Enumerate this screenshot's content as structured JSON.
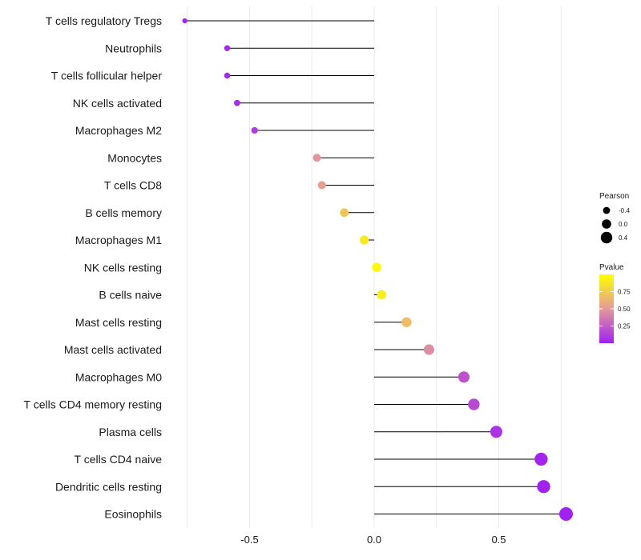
{
  "chart_data": {
    "type": "lollipop",
    "xlabel": "",
    "ylabel": "",
    "xlim": [
      -0.8,
      0.8
    ],
    "xticks": [
      -0.5,
      0.0,
      0.5
    ],
    "xtick_labels": [
      "-0.5",
      "0.0",
      "0.5"
    ],
    "grid": true,
    "categories": [
      "T cells regulatory  Tregs",
      "Neutrophils",
      "T cells follicular helper",
      "NK cells activated",
      "Macrophages M2",
      "Monocytes",
      "T cells CD8",
      "B cells memory",
      "Macrophages M1",
      "NK cells resting",
      "B cells naive",
      "Mast cells resting",
      "Mast cells activated",
      "Macrophages M0",
      "T cells CD4 memory resting",
      "Plasma cells",
      "T cells CD4 naive",
      "Dendritic cells resting",
      "Eosinophils"
    ],
    "pearson": [
      -0.76,
      -0.59,
      -0.59,
      -0.55,
      -0.48,
      -0.23,
      -0.21,
      -0.12,
      -0.04,
      0.01,
      0.03,
      0.13,
      0.22,
      0.36,
      0.4,
      0.49,
      0.67,
      0.68,
      0.77
    ],
    "pvalue": [
      0.02,
      0.04,
      0.04,
      0.05,
      0.12,
      0.48,
      0.53,
      0.72,
      0.9,
      0.97,
      0.92,
      0.68,
      0.45,
      0.21,
      0.17,
      0.08,
      0.02,
      0.01,
      0.005
    ],
    "legend": {
      "position": "right",
      "size": {
        "title": "Pearson",
        "entries": [
          {
            "label": "-0.4",
            "value": -0.4
          },
          {
            "label": "0.0",
            "value": 0.0
          },
          {
            "label": "0.4",
            "value": 0.4
          }
        ]
      },
      "color": {
        "title": "Pvalue",
        "ticks": [
          {
            "label": "0.75",
            "value": 0.75
          },
          {
            "label": "0.50",
            "value": 0.5
          },
          {
            "label": "0.25",
            "value": 0.25
          }
        ],
        "low_color": "#a020f0",
        "mid_color": "#e39a9a",
        "high_color": "#ffff00"
      }
    }
  },
  "colors": {
    "grid": "#ebebeb",
    "stem": "#000000"
  }
}
